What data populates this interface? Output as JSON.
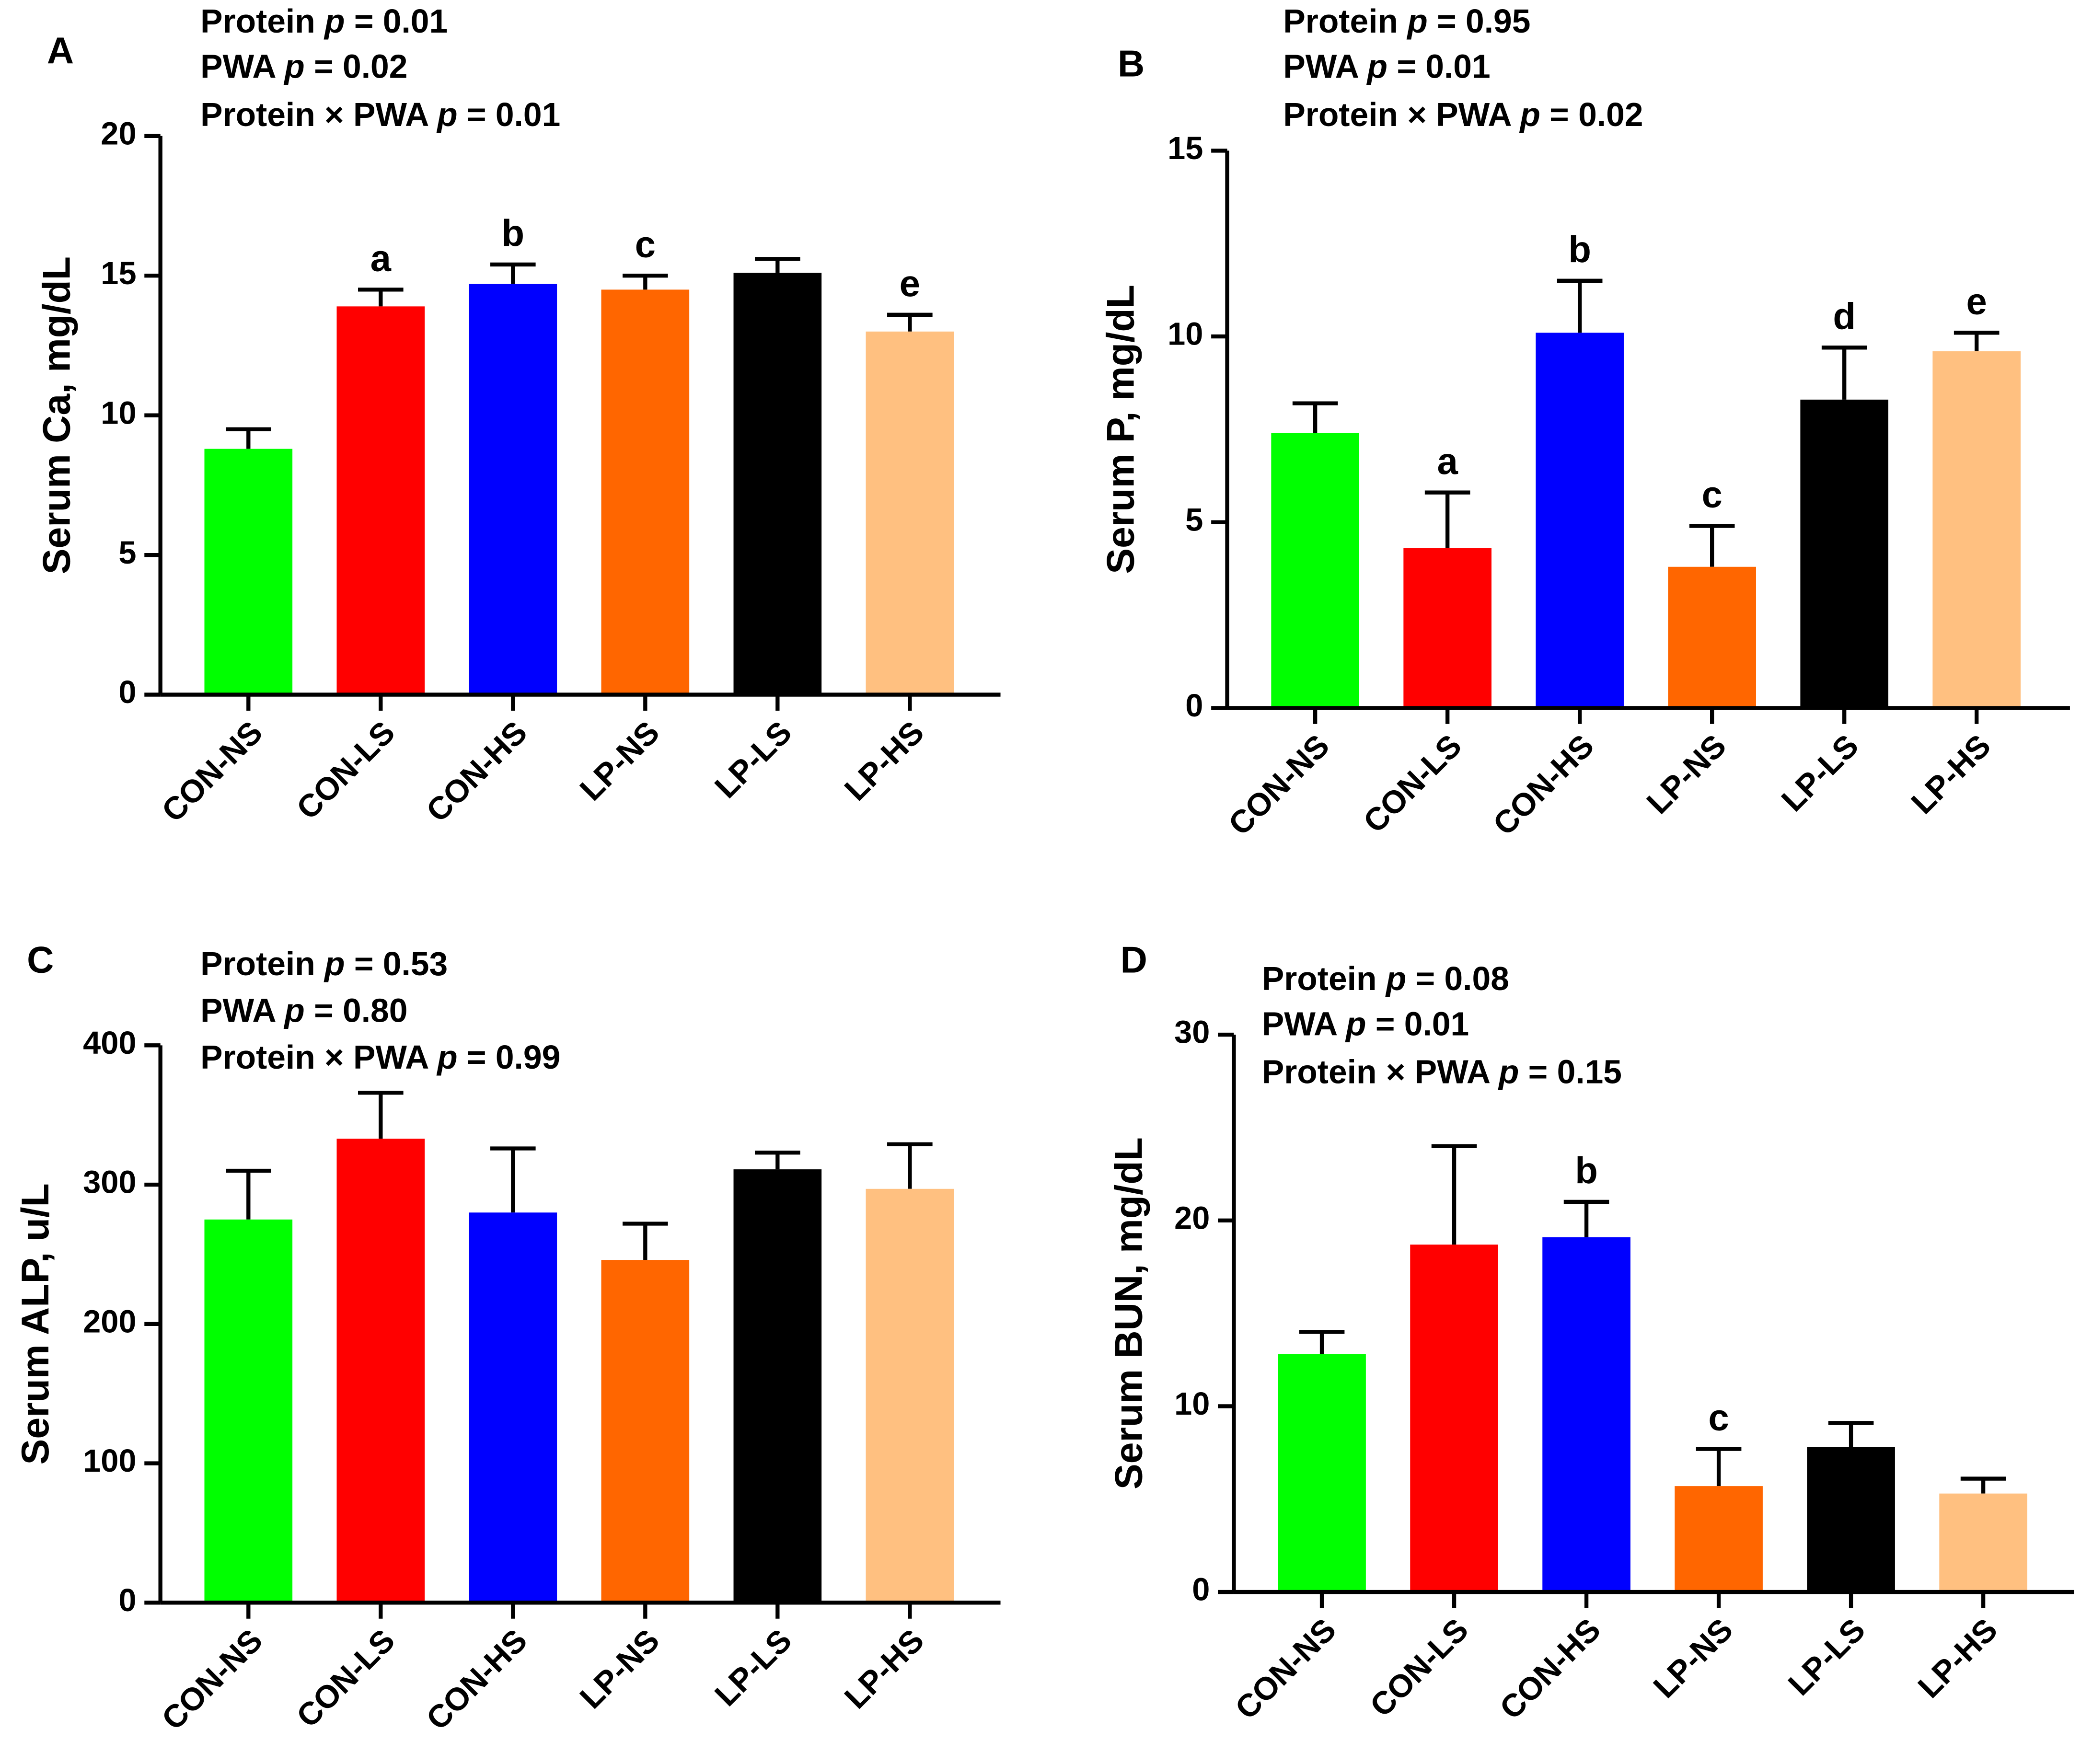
{
  "chart_data": [
    {
      "type": "bar",
      "panel_label": "A",
      "stats": [
        {
          "prefix": "Protein ",
          "p": "p",
          "suffix": " = 0.01"
        },
        {
          "prefix": "PWA ",
          "p": "p",
          "suffix": " = 0.02"
        },
        {
          "prefix": "Protein × PWA ",
          "p": "p",
          "suffix": " = 0.01"
        }
      ],
      "ylabel": "Serum Ca, mg/dL",
      "ylim": [
        0,
        20
      ],
      "yticks": [
        0,
        5,
        10,
        15,
        20
      ],
      "categories": [
        "CON-NS",
        "CON-LS",
        "CON-HS",
        "LP-NS",
        "LP-LS",
        "LP-HS"
      ],
      "values": [
        8.8,
        13.9,
        14.7,
        14.5,
        15.1,
        13.0
      ],
      "errors": [
        0.7,
        0.6,
        0.7,
        0.5,
        0.5,
        0.6
      ],
      "letters": [
        "",
        "a",
        "b",
        "c",
        "",
        "e"
      ]
    },
    {
      "type": "bar",
      "panel_label": "B",
      "stats": [
        {
          "prefix": "Protein ",
          "p": "p",
          "suffix": " = 0.95"
        },
        {
          "prefix": "PWA ",
          "p": "p",
          "suffix": " = 0.01"
        },
        {
          "prefix": "Protein × PWA ",
          "p": "p",
          "suffix": " = 0.02"
        }
      ],
      "ylabel": "Serum P, mg/dL",
      "ylim": [
        0,
        15
      ],
      "yticks": [
        0,
        5,
        10,
        15
      ],
      "categories": [
        "CON-NS",
        "CON-LS",
        "CON-HS",
        "LP-NS",
        "LP-LS",
        "LP-HS"
      ],
      "values": [
        7.4,
        4.3,
        10.1,
        3.8,
        8.3,
        9.6
      ],
      "errors": [
        0.8,
        1.5,
        1.4,
        1.1,
        1.4,
        0.5
      ],
      "letters": [
        "",
        "a",
        "b",
        "c",
        "d",
        "e"
      ]
    },
    {
      "type": "bar",
      "panel_label": "C",
      "stats": [
        {
          "prefix": "Protein ",
          "p": "p",
          "suffix": " = 0.53"
        },
        {
          "prefix": "PWA ",
          "p": "p",
          "suffix": " = 0.80"
        },
        {
          "prefix": "Protein × PWA ",
          "p": "p",
          "suffix": " = 0.99"
        }
      ],
      "ylabel": "Serum ALP, u/L",
      "ylim": [
        0,
        400
      ],
      "yticks": [
        0,
        100,
        200,
        300,
        400
      ],
      "categories": [
        "CON-NS",
        "CON-LS",
        "CON-HS",
        "LP-NS",
        "LP-LS",
        "LP-HS"
      ],
      "values": [
        275,
        333,
        280,
        246,
        311,
        297
      ],
      "errors": [
        35,
        33,
        46,
        26,
        12,
        32
      ],
      "letters": [
        "",
        "",
        "",
        "",
        "",
        ""
      ]
    },
    {
      "type": "bar",
      "panel_label": "D",
      "stats": [
        {
          "prefix": "Protein ",
          "p": "p",
          "suffix": " = 0.08"
        },
        {
          "prefix": "PWA ",
          "p": "p",
          "suffix": " = 0.01"
        },
        {
          "prefix": "Protein × PWA ",
          "p": "p",
          "suffix": " = 0.15"
        }
      ],
      "ylabel": "Serum BUN, mg/dL",
      "ylim": [
        0,
        30
      ],
      "yticks": [
        0,
        10,
        20,
        30
      ],
      "categories": [
        "CON-NS",
        "CON-LS",
        "CON-HS",
        "LP-NS",
        "LP-LS",
        "LP-HS"
      ],
      "values": [
        12.8,
        18.7,
        19.1,
        5.7,
        7.8,
        5.3
      ],
      "errors": [
        1.2,
        5.3,
        1.9,
        2.0,
        1.3,
        0.8
      ],
      "letters": [
        "",
        "",
        "b",
        "c",
        "",
        ""
      ]
    }
  ],
  "colors": [
    "#00FF00",
    "#FF0000",
    "#0000FF",
    "#FF6600",
    "#000000",
    "#FFC080"
  ]
}
